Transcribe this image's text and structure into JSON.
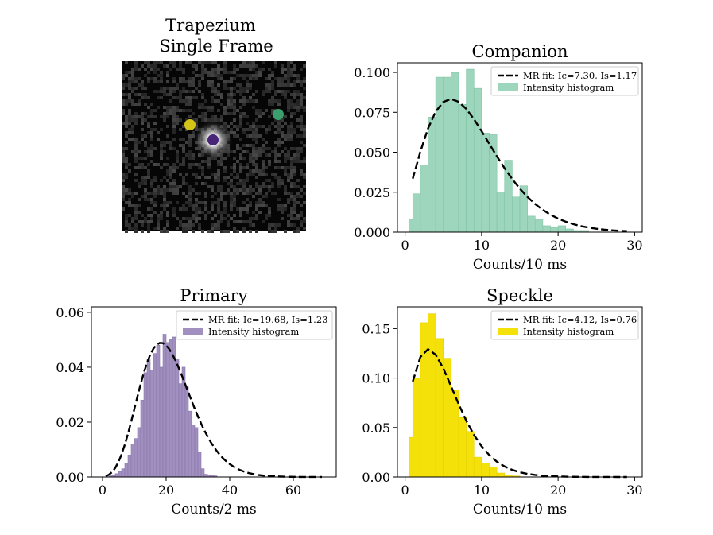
{
  "image_panel": {
    "title_line1": "Trapezium",
    "title_line2": "Single Frame",
    "markers": [
      {
        "name": "primary",
        "color": "#482677"
      },
      {
        "name": "speckle",
        "color": "#d4c418"
      },
      {
        "name": "companion",
        "color": "#3a9f6c"
      }
    ]
  },
  "chart_data": [
    {
      "id": "companion",
      "type": "bar",
      "title": "Companion",
      "xlabel": "Counts/10 ms",
      "xlim": [
        -1,
        31
      ],
      "ylim": [
        0,
        0.106
      ],
      "xticks": [
        0,
        10,
        20,
        30
      ],
      "yticks": [
        0.0,
        0.025,
        0.05,
        0.075,
        0.1
      ],
      "ytick_labels": [
        "0.000",
        "0.025",
        "0.050",
        "0.075",
        "0.100"
      ],
      "bar_color": "#9ed6bd",
      "bar_edge": "#7fc4a4",
      "bins": [
        [
          0.5,
          1
        ],
        [
          1,
          2
        ],
        [
          2,
          3
        ],
        [
          3,
          4
        ],
        [
          4,
          5
        ],
        [
          5,
          6
        ],
        [
          6,
          7
        ],
        [
          7,
          8
        ],
        [
          8,
          9
        ],
        [
          9,
          10
        ],
        [
          10,
          11
        ],
        [
          11,
          12
        ],
        [
          12,
          13
        ],
        [
          13,
          14
        ],
        [
          14,
          15
        ],
        [
          15,
          16
        ],
        [
          16,
          17
        ],
        [
          17,
          18
        ],
        [
          18,
          19
        ],
        [
          19,
          20
        ],
        [
          20,
          21
        ],
        [
          21,
          22
        ],
        [
          22,
          23
        ],
        [
          23,
          24
        ]
      ],
      "values": [
        0.008,
        0.024,
        0.042,
        0.072,
        0.097,
        0.097,
        0.1,
        0.08,
        0.102,
        0.09,
        0.062,
        0.061,
        0.025,
        0.045,
        0.022,
        0.029,
        0.01,
        0.008,
        0.004,
        0.003,
        0.004,
        0.002,
        0.001,
        0.001
      ],
      "fit": {
        "type": "poisson_rice",
        "ic": 7.3,
        "is": 1.17,
        "x_range": [
          0.5,
          29.5
        ],
        "bins_per_unit": 1
      },
      "legend": {
        "fit_label": "MR fit: Ic=7.30, Is=1.17",
        "hist_label": "Intensity histogram",
        "position": "upper right"
      }
    },
    {
      "id": "primary",
      "type": "bar",
      "title": "Primary",
      "xlabel": "Counts/2 ms",
      "xlim": [
        -3.5,
        73.5
      ],
      "ylim": [
        0,
        0.062
      ],
      "xticks": [
        0,
        20,
        40,
        60
      ],
      "yticks": [
        0.0,
        0.02,
        0.04,
        0.06
      ],
      "ytick_labels": [
        "0.00",
        "0.02",
        "0.04",
        "0.06"
      ],
      "bar_color": "#a18fbf",
      "bar_edge": "#8a76ad",
      "bins": [
        [
          2,
          3
        ],
        [
          3,
          4
        ],
        [
          4,
          5
        ],
        [
          5,
          6
        ],
        [
          6,
          7
        ],
        [
          7,
          8
        ],
        [
          8,
          9
        ],
        [
          9,
          10
        ],
        [
          10,
          11
        ],
        [
          11,
          12
        ],
        [
          12,
          13
        ],
        [
          13,
          14
        ],
        [
          14,
          15
        ],
        [
          15,
          16
        ],
        [
          16,
          17
        ],
        [
          17,
          18
        ],
        [
          18,
          19
        ],
        [
          19,
          20
        ],
        [
          20,
          21
        ],
        [
          21,
          22
        ],
        [
          22,
          23
        ],
        [
          23,
          24
        ],
        [
          24,
          25
        ],
        [
          25,
          26
        ],
        [
          26,
          27
        ],
        [
          27,
          28
        ],
        [
          28,
          29
        ],
        [
          29,
          30
        ],
        [
          30,
          31
        ],
        [
          31,
          32
        ],
        [
          32,
          33
        ],
        [
          33,
          34
        ],
        [
          34,
          35
        ],
        [
          35,
          36
        ]
      ],
      "values": [
        0.0004,
        0.0008,
        0.0012,
        0.002,
        0.003,
        0.005,
        0.008,
        0.012,
        0.014,
        0.018,
        0.028,
        0.038,
        0.043,
        0.039,
        0.045,
        0.048,
        0.04,
        0.052,
        0.049,
        0.05,
        0.051,
        0.043,
        0.034,
        0.04,
        0.033,
        0.024,
        0.019,
        0.018,
        0.009,
        0.003,
        0.001,
        0.0008,
        0.0006,
        0.0004
      ],
      "fit": {
        "type": "poisson_rice",
        "ic": 19.68,
        "is": 1.23,
        "x_range": [
          0.5,
          69.5
        ],
        "bins_per_unit": 1
      },
      "legend": {
        "fit_label": "MR fit: Ic=19.68, Is=1.23",
        "hist_label": "Intensity histogram",
        "position": "upper right"
      }
    },
    {
      "id": "speckle",
      "type": "bar",
      "title": "Speckle",
      "xlabel": "Counts/10 ms",
      "xlim": [
        -1,
        31
      ],
      "ylim": [
        0,
        0.172
      ],
      "xticks": [
        0,
        10,
        20,
        30
      ],
      "yticks": [
        0.0,
        0.05,
        0.1,
        0.15
      ],
      "ytick_labels": [
        "0.00",
        "0.05",
        "0.10",
        "0.15"
      ],
      "bar_color": "#f5e10a",
      "bar_edge": "#e3cf06",
      "bins": [
        [
          0.5,
          1
        ],
        [
          1,
          2
        ],
        [
          2,
          3
        ],
        [
          3,
          4
        ],
        [
          4,
          5
        ],
        [
          5,
          6
        ],
        [
          6,
          7
        ],
        [
          7,
          8
        ],
        [
          8,
          9
        ],
        [
          9,
          10
        ],
        [
          10,
          11
        ],
        [
          11,
          12
        ],
        [
          12,
          13
        ],
        [
          13,
          14
        ],
        [
          14,
          15
        ]
      ],
      "values": [
        0.04,
        0.1,
        0.156,
        0.165,
        0.14,
        0.12,
        0.088,
        0.06,
        0.046,
        0.02,
        0.014,
        0.01,
        0.004,
        0.002,
        0.001
      ],
      "fit": {
        "type": "poisson_rice",
        "ic": 4.12,
        "is": 0.76,
        "x_range": [
          0.5,
          29.5
        ],
        "bins_per_unit": 1
      },
      "legend": {
        "fit_label": "MR fit: Ic=4.12, Is=0.76",
        "hist_label": "Intensity histogram",
        "position": "upper right"
      }
    }
  ]
}
